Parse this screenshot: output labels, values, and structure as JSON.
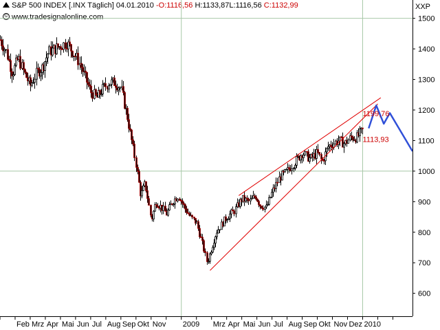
{
  "header": {
    "symbol": "S&P 500 INDEX [.INX  Täglich]",
    "date": "04.01.2010",
    "open": "O:1116,56",
    "high": "H:1133,87",
    "low": "L:1116,56",
    "close": "C:1132,99",
    "source": "www.tradesignalonline.com",
    "copyright_symbol": "©"
  },
  "chart_data": {
    "type": "candlestick",
    "title": "S&P 500 INDEX [.INX  Täglich]",
    "unit": "XXP",
    "ylim": [
      525,
      1560
    ],
    "y_ticks": [
      600,
      700,
      800,
      900,
      1000,
      1100,
      1200,
      1300,
      1400,
      1500
    ],
    "y_tick_labels": [
      "600",
      "700",
      "800",
      "900",
      "1000",
      "1100",
      "1200",
      "1300",
      "1400",
      "1500"
    ],
    "x_labels": [
      "Feb",
      "Mrz",
      "Apr",
      "Mai",
      "Jun",
      "Jul",
      "Aug",
      "Sep",
      "Okt",
      "Nov",
      "2009",
      "Mrz",
      "Apr",
      "Mai",
      "Jun",
      "Jul",
      "Aug",
      "Sep",
      "Okt",
      "Nov",
      "Dez",
      "2010"
    ],
    "x_label_month_index": [
      1,
      2,
      3,
      4,
      5,
      6,
      7,
      8,
      9,
      10,
      12,
      14,
      15,
      16,
      17,
      18,
      19,
      20,
      21,
      22,
      23,
      24
    ],
    "xlim_month_index": [
      0,
      27.3
    ],
    "grid": "sparse",
    "grid_lines_y": [
      1000,
      1500
    ],
    "grid_lines_x_month_index": [
      12,
      24
    ],
    "price_path": [
      [
        0,
        1430
      ],
      [
        0.4,
        1390
      ],
      [
        0.8,
        1320
      ],
      [
        1.2,
        1370
      ],
      [
        1.6,
        1320
      ],
      [
        2.0,
        1280
      ],
      [
        2.4,
        1320
      ],
      [
        2.8,
        1340
      ],
      [
        3.2,
        1390
      ],
      [
        3.6,
        1400
      ],
      [
        4.0,
        1410
      ],
      [
        4.4,
        1420
      ],
      [
        4.8,
        1390
      ],
      [
        5.2,
        1360
      ],
      [
        5.6,
        1310
      ],
      [
        6.0,
        1260
      ],
      [
        6.4,
        1240
      ],
      [
        6.8,
        1270
      ],
      [
        7.2,
        1290
      ],
      [
        7.6,
        1290
      ],
      [
        8.0,
        1270
      ],
      [
        8.4,
        1180
      ],
      [
        8.7,
        1100
      ],
      [
        9.0,
        1020
      ],
      [
        9.3,
        920
      ],
      [
        9.6,
        960
      ],
      [
        10.0,
        840
      ],
      [
        10.3,
        900
      ],
      [
        10.7,
        880
      ],
      [
        11.0,
        860
      ],
      [
        11.4,
        900
      ],
      [
        11.8,
        920
      ],
      [
        12.2,
        880
      ],
      [
        12.6,
        850
      ],
      [
        13.0,
        830
      ],
      [
        13.4,
        760
      ],
      [
        13.7,
        700
      ],
      [
        14.0,
        750
      ],
      [
        14.3,
        800
      ],
      [
        14.7,
        830
      ],
      [
        15.0,
        850
      ],
      [
        15.5,
        870
      ],
      [
        16.0,
        910
      ],
      [
        16.5,
        900
      ],
      [
        16.9,
        920
      ],
      [
        17.2,
        890
      ],
      [
        17.6,
        880
      ],
      [
        18.0,
        930
      ],
      [
        18.5,
        980
      ],
      [
        19.0,
        1000
      ],
      [
        19.5,
        1030
      ],
      [
        20.0,
        1060
      ],
      [
        20.5,
        1040
      ],
      [
        21.0,
        1060
      ],
      [
        21.3,
        1030
      ],
      [
        21.7,
        1080
      ],
      [
        22.0,
        1090
      ],
      [
        22.4,
        1100
      ],
      [
        22.8,
        1090
      ],
      [
        23.2,
        1110
      ],
      [
        23.6,
        1110
      ],
      [
        24.0,
        1133
      ]
    ],
    "trend_lines": [
      {
        "from": [
          13.9,
          675
        ],
        "to": [
          25.0,
          1220
        ]
      },
      {
        "from": [
          15.8,
          920
        ],
        "to": [
          25.2,
          1240
        ]
      }
    ],
    "annotations": [
      {
        "text": "1199,76",
        "x": 24.0,
        "y": 1180
      },
      {
        "text": "1113,93",
        "x": 24.0,
        "y": 1095
      }
    ],
    "projection": [
      [
        24.4,
        1140
      ],
      [
        24.9,
        1215
      ],
      [
        25.4,
        1155
      ],
      [
        25.8,
        1190
      ],
      [
        26.4,
        1140
      ],
      [
        27.3,
        1065
      ]
    ]
  },
  "colors": {
    "background": "#ffffff",
    "axis": "#000000",
    "grid": "#a8c8a8",
    "up_candle": "#ffffff",
    "down_candle": "#000000",
    "bear_accent": "#b00000",
    "trend_line": "#e00000",
    "projection": "#3050d8",
    "annotation": "#cc0000"
  }
}
